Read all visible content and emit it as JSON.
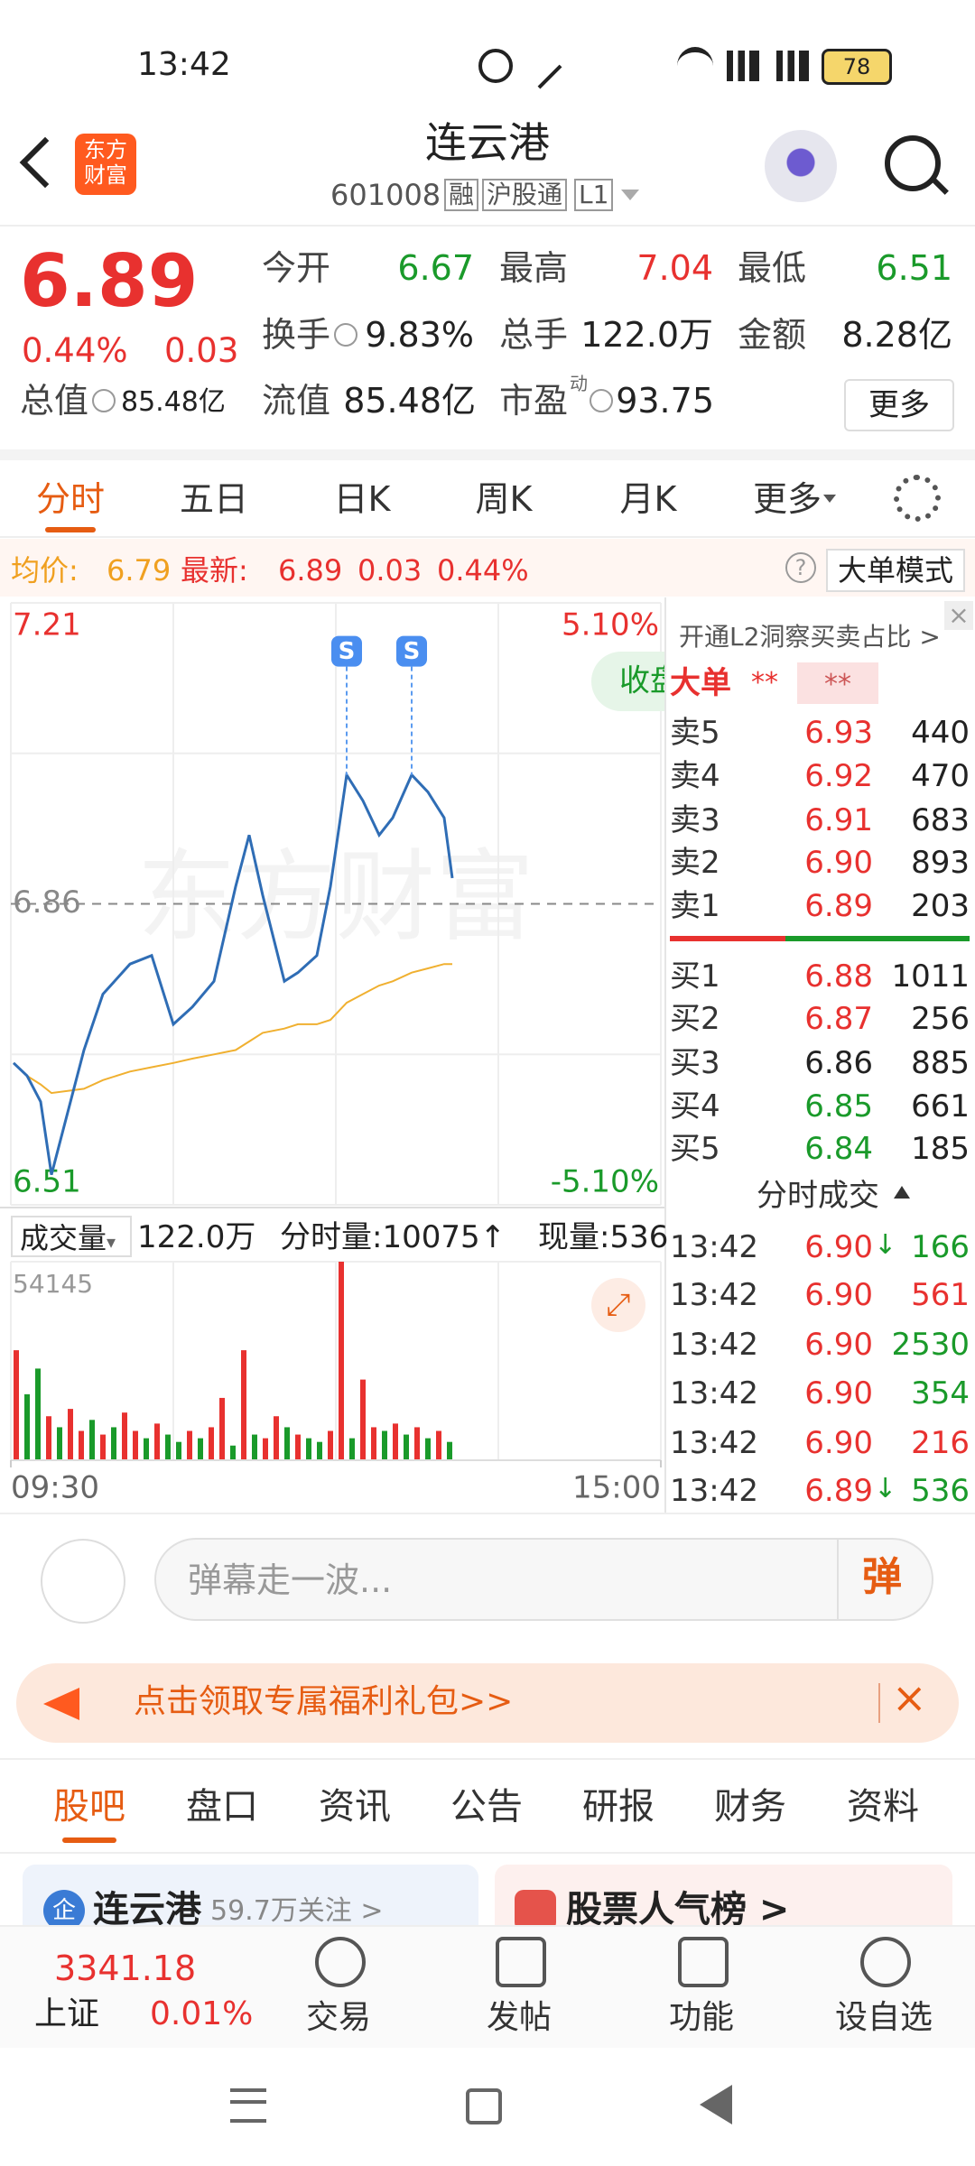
{
  "status": {
    "time": "13:42",
    "battery": "78"
  },
  "header": {
    "logo": [
      "东方",
      "财富"
    ],
    "title": "连云港",
    "code": "601008",
    "tags": [
      "融",
      "沪股通",
      "L1"
    ]
  },
  "quote": {
    "price": "6.89",
    "change_pct": "0.44%",
    "change": "0.03",
    "more": "更多",
    "stats": [
      {
        "label": "今开",
        "value": "6.67",
        "color": "#1a9a2a"
      },
      {
        "label": "最高",
        "value": "7.04",
        "color": "#e8312f"
      },
      {
        "label": "最低",
        "value": "6.51",
        "color": "#1a9a2a"
      },
      {
        "label": "换手",
        "value": "9.83%",
        "icon": true
      },
      {
        "label": "总手",
        "value": "122.0万"
      },
      {
        "label": "金额",
        "value": "8.28亿"
      },
      {
        "label": "总值",
        "value": "85.48亿",
        "icon": true
      },
      {
        "label": "流值",
        "value": "85.48亿"
      },
      {
        "label": "市盈",
        "sup": "动",
        "value": "93.75",
        "icon": true
      }
    ]
  },
  "tabs": {
    "items": [
      "分时",
      "五日",
      "日K",
      "周K",
      "月K",
      "更多"
    ],
    "active": 0
  },
  "infobar": {
    "avg_label": "均价:",
    "avg": "6.79",
    "last_label": "最新:",
    "last": "6.89",
    "change": "0.03",
    "pct": "0.44%",
    "help": "?",
    "mode": "大单模式"
  },
  "chart_data": [
    {
      "type": "line",
      "watermark": "东方财富",
      "close_badge": "收盘",
      "x": [
        1,
        6,
        11,
        15,
        27,
        34,
        44,
        52,
        60,
        67,
        75,
        83,
        88,
        93,
        101,
        106,
        113,
        118,
        124,
        130,
        136,
        141,
        148,
        154,
        160,
        163
      ],
      "series": [
        {
          "color": "#2f6db5",
          "values": [
            6.675,
            6.66,
            6.63,
            6.545,
            6.69,
            6.755,
            6.79,
            6.8,
            6.72,
            6.74,
            6.77,
            6.88,
            6.94,
            6.87,
            6.77,
            6.78,
            6.8,
            6.88,
            7.01,
            6.98,
            6.94,
            6.96,
            7.01,
            6.99,
            6.96,
            6.89
          ]
        },
        {
          "color": "#f0b030",
          "values": [
            6.675,
            6.66,
            6.65,
            6.64,
            6.645,
            6.655,
            6.665,
            6.67,
            6.675,
            6.68,
            6.685,
            6.69,
            6.7,
            6.71,
            6.715,
            6.72,
            6.72,
            6.725,
            6.745,
            6.755,
            6.765,
            6.77,
            6.78,
            6.785,
            6.79,
            6.79
          ]
        }
      ],
      "signals": [
        {
          "label": "S",
          "x": 124
        },
        {
          "label": "S",
          "x": 148
        }
      ],
      "xlim": [
        0,
        240
      ],
      "ylim": [
        6.51,
        7.21
      ],
      "yticks": [
        7.21,
        6.86,
        6.51
      ],
      "y2lim": [
        -5.1,
        5.1
      ],
      "y2ticks": [
        {
          "value": 5.1,
          "label": "5.10%"
        },
        {
          "value": -5.1,
          "label": "-5.10%"
        }
      ]
    },
    {
      "type": "bar",
      "header": {
        "label": "成交量",
        "total": "122.0万",
        "tick": "分时量:10075↑",
        "current": "现量:536"
      },
      "x": [
        2,
        6,
        10,
        14,
        18,
        22,
        26,
        30,
        34,
        38,
        42,
        46,
        50,
        54,
        58,
        62,
        66,
        70,
        74,
        78,
        82,
        86,
        90,
        94,
        98,
        102,
        106,
        110,
        114,
        118,
        122,
        126,
        130,
        134,
        138,
        142,
        146,
        150,
        154,
        158,
        162
      ],
      "values": [
        30000,
        18000,
        25000,
        12000,
        9000,
        14000,
        8000,
        11000,
        7000,
        9000,
        13000,
        8000,
        6000,
        10000,
        7000,
        5000,
        8000,
        6000,
        9000,
        17000,
        4000,
        30000,
        7000,
        6000,
        12000,
        9000,
        7000,
        6000,
        5000,
        8000,
        54145,
        6000,
        22000,
        9000,
        8000,
        10000,
        7000,
        9000,
        6000,
        8000,
        5000
      ],
      "colors": [
        "#e8312f",
        "#1a9a2a",
        "#1a9a2a",
        "#e8312f",
        "#1a9a2a",
        "#e8312f",
        "#e8312f",
        "#1a9a2a",
        "#e8312f",
        "#1a9a2a",
        "#e8312f",
        "#e8312f",
        "#1a9a2a",
        "#e8312f",
        "#1a9a2a",
        "#1a9a2a",
        "#e8312f",
        "#1a9a2a",
        "#e8312f",
        "#e8312f",
        "#1a9a2a",
        "#e8312f",
        "#1a9a2a",
        "#e8312f",
        "#e8312f",
        "#1a9a2a",
        "#e8312f",
        "#1a9a2a",
        "#1a9a2a",
        "#e8312f",
        "#e8312f",
        "#1a9a2a",
        "#e8312f",
        "#e8312f",
        "#1a9a2a",
        "#e8312f",
        "#1a9a2a",
        "#e8312f",
        "#1a9a2a",
        "#e8312f",
        "#1a9a2a"
      ],
      "xlim": [
        0,
        240
      ],
      "xticks": [
        {
          "value": 0,
          "label": "09:30"
        },
        {
          "value": 240,
          "label": "15:00"
        }
      ],
      "ylim": [
        0,
        54145
      ],
      "yticks": [
        54145
      ]
    }
  ],
  "orderbook": {
    "promo": "开通L2洞察买卖占比 >",
    "big": {
      "label": "大单",
      "v1": "**",
      "v2": "**"
    },
    "asks": [
      {
        "label": "卖5",
        "price": "6.93",
        "volume": "440",
        "color": "#e8312f"
      },
      {
        "label": "卖4",
        "price": "6.92",
        "volume": "470",
        "color": "#e8312f"
      },
      {
        "label": "卖3",
        "price": "6.91",
        "volume": "683",
        "color": "#e8312f"
      },
      {
        "label": "卖2",
        "price": "6.90",
        "volume": "893",
        "color": "#e8312f"
      },
      {
        "label": "卖1",
        "price": "6.89",
        "volume": "203",
        "color": "#e8312f"
      }
    ],
    "bids": [
      {
        "label": "买1",
        "price": "6.88",
        "volume": "1011",
        "color": "#e8312f"
      },
      {
        "label": "买2",
        "price": "6.87",
        "volume": "256",
        "color": "#e8312f"
      },
      {
        "label": "买3",
        "price": "6.86",
        "volume": "885",
        "color": "#222222"
      },
      {
        "label": "买4",
        "price": "6.85",
        "volume": "661",
        "color": "#1a9a2a"
      },
      {
        "label": "买5",
        "price": "6.84",
        "volume": "185",
        "color": "#1a9a2a"
      }
    ],
    "trades_title": "分时成交",
    "trades": [
      {
        "time": "13:42",
        "price": "6.90",
        "arrow": "↓",
        "volume": "166",
        "volume_color": "#1a9a2a"
      },
      {
        "time": "13:42",
        "price": "6.90",
        "volume": "561",
        "volume_color": "#e8312f"
      },
      {
        "time": "13:42",
        "price": "6.90",
        "volume": "2530",
        "volume_color": "#1a9a2a"
      },
      {
        "time": "13:42",
        "price": "6.90",
        "volume": "354",
        "volume_color": "#1a9a2a"
      },
      {
        "time": "13:42",
        "price": "6.90",
        "volume": "216",
        "volume_color": "#e8312f"
      },
      {
        "time": "13:42",
        "price": "6.89",
        "arrow": "↓",
        "volume": "536",
        "volume_color": "#1a9a2a"
      }
    ]
  },
  "comment": {
    "placeholder": "弹幕走一波...",
    "button": "弹"
  },
  "banner": {
    "text": "点击领取专属福利礼包>>"
  },
  "bottom_tabs": {
    "items": [
      "股吧",
      "盘口",
      "资讯",
      "公告",
      "研报",
      "财务",
      "资料"
    ],
    "active": 0
  },
  "cards": [
    {
      "icon": "企",
      "title": "连云港",
      "sub": "59.7万关注 >"
    },
    {
      "title": "股票人气榜 >"
    }
  ],
  "nav": {
    "index_value": "3341.18",
    "index_name": "上证",
    "index_pct": "0.01%",
    "items": [
      "交易",
      "发帖",
      "功能",
      "设自选"
    ]
  }
}
